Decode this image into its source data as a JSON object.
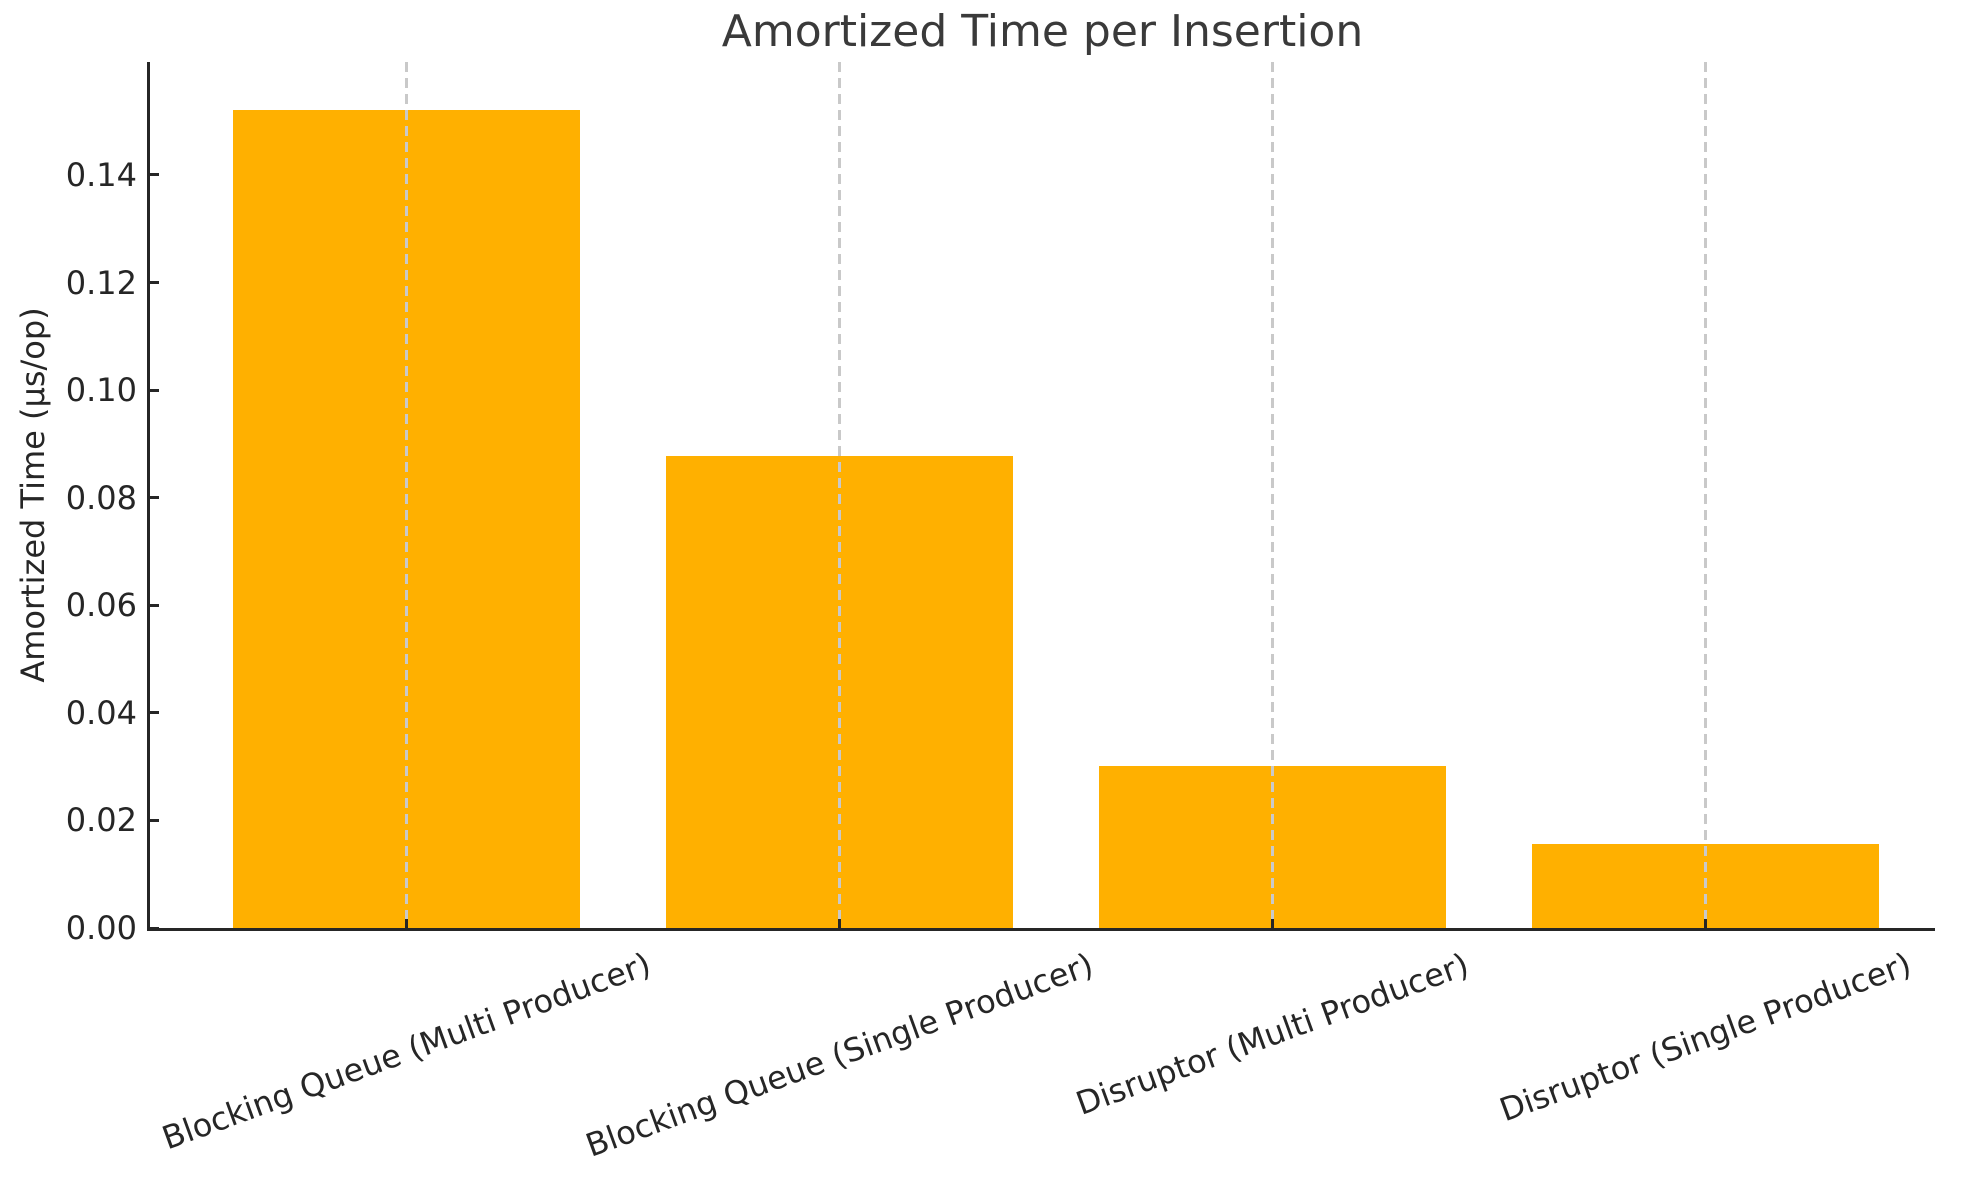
{
  "chart_data": {
    "type": "bar",
    "title": "Amortized Time per Insertion",
    "xlabel": "",
    "ylabel": "Amortized Time (µs/op)",
    "categories": [
      "Blocking Queue (Multi Producer)",
      "Blocking Queue (Single Producer)",
      "Disruptor (Multi Producer)",
      "Disruptor (Single Producer)"
    ],
    "values": [
      0.152,
      0.0878,
      0.0301,
      0.0157
    ],
    "yticks": [
      0.0,
      0.02,
      0.04,
      0.06,
      0.08,
      0.1,
      0.12,
      0.14
    ],
    "ytick_labels": [
      "0.00",
      "0.02",
      "0.04",
      "0.06",
      "0.08",
      "0.10",
      "0.12",
      "0.14"
    ],
    "ylim": [
      0,
      0.161
    ],
    "grid": "vertical-dashed-at-bar-centers",
    "grid_over_bars": true,
    "legend": "none",
    "x_tick_rotation_deg": 20,
    "bar_color": "#FFB000",
    "axis_color": "#262626",
    "grid_color": "#C9C9C9",
    "title_color": "#3A3A3A",
    "tick_text_color": "#262626",
    "background_color": "#FFFFFF"
  }
}
